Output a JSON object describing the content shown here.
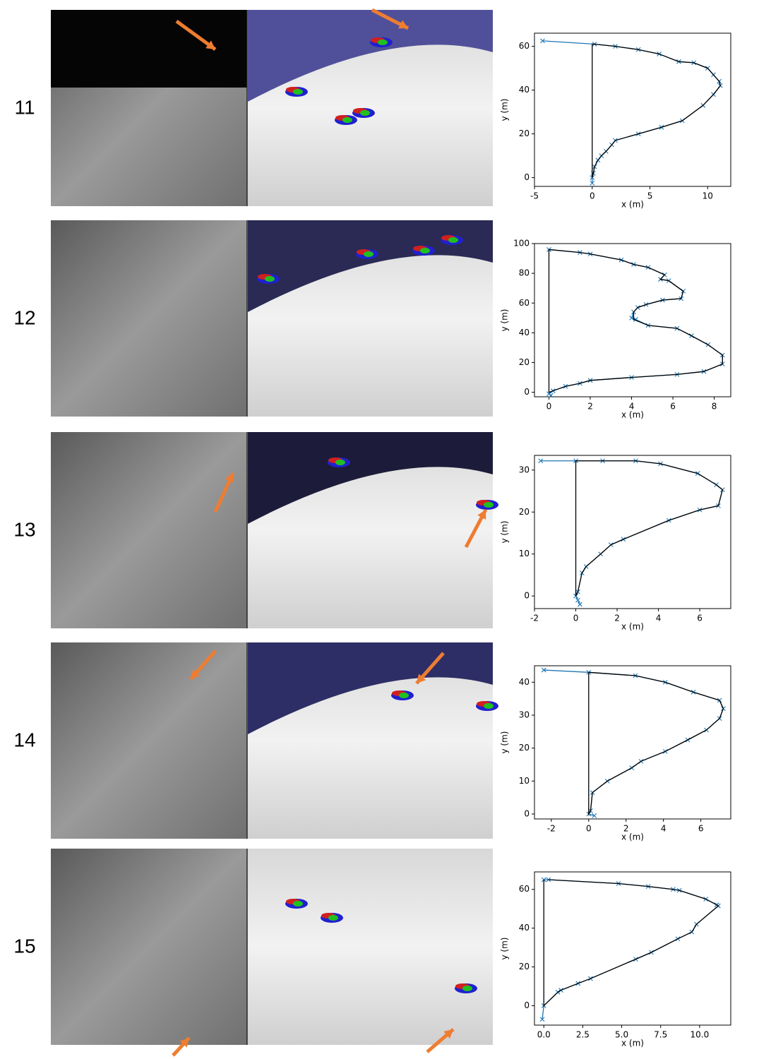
{
  "row_labels": [
    "11",
    "12",
    "13",
    "14",
    "15"
  ],
  "chart_data": [
    {
      "type": "line",
      "x_label": "x (m)",
      "y_label": "y (m)",
      "xlim": [
        -5,
        12
      ],
      "xticks": [
        -5,
        0,
        5,
        10
      ],
      "ylim": [
        -4,
        66
      ],
      "yticks": [
        0,
        20,
        40,
        60
      ],
      "series": [
        {
          "color": "#1f77b4",
          "marker": "x",
          "x": [
            -4.3,
            0.2,
            2,
            4,
            5.8,
            7.5,
            8.8,
            10,
            10.5,
            11,
            11.1,
            10.5,
            9.6,
            7.8,
            6,
            4,
            2,
            1.7,
            1.2,
            0.8,
            0.5,
            0.2,
            0.1,
            0,
            0
          ],
          "values": [
            62.5,
            61,
            60,
            58.5,
            56.5,
            53,
            52.5,
            50,
            47,
            44,
            42,
            38,
            33,
            26,
            23,
            20,
            17,
            15,
            12,
            10,
            8,
            5,
            2,
            0,
            -2.5
          ]
        },
        {
          "color": "#000000",
          "x": [
            0,
            0.2,
            2,
            4,
            5.8,
            7.5,
            8.8,
            10,
            10.5,
            11,
            11.1,
            10.5,
            9.6,
            7.8,
            6,
            4,
            2,
            1.7,
            1.2,
            0.8,
            0.5,
            0.2,
            0.1,
            0,
            0
          ],
          "values": [
            61,
            61,
            60,
            58.5,
            56.5,
            53,
            52.5,
            50,
            47,
            44,
            42,
            38,
            33,
            26,
            23,
            20,
            17,
            15,
            12,
            10,
            8,
            5,
            2,
            0,
            61
          ]
        }
      ]
    },
    {
      "type": "line",
      "x_label": "x (m)",
      "y_label": "y (m)",
      "xlim": [
        -0.7,
        8.8
      ],
      "xticks": [
        0,
        2,
        4,
        6,
        8
      ],
      "ylim": [
        -3,
        100
      ],
      "yticks": [
        0,
        20,
        40,
        60,
        80,
        100
      ],
      "series": [
        {
          "color": "#1f77b4",
          "marker": "x",
          "x": [
            0,
            1.5,
            2,
            3.5,
            4.1,
            4.8,
            5.6,
            5.4,
            5.8,
            6.5,
            6.4,
            5.5,
            4.7,
            4.3,
            4.1,
            4.0,
            4.2,
            4.8,
            6.2,
            6.9,
            7.7,
            8.4,
            8.4,
            7.5,
            6.2,
            4,
            2,
            1.5,
            0.8,
            0.2,
            0,
            0.1
          ],
          "values": [
            96,
            94,
            93,
            89,
            86,
            84,
            79,
            76,
            75,
            68,
            63,
            62,
            59,
            57,
            54,
            50,
            49,
            45,
            43,
            38,
            32,
            25,
            19,
            14,
            12,
            10,
            8,
            6,
            4,
            1,
            -1,
            -2
          ]
        },
        {
          "color": "#000000",
          "x": [
            0,
            1.5,
            2,
            3.5,
            4.1,
            4.8,
            5.6,
            5.4,
            5.8,
            6.5,
            6.4,
            5.5,
            4.7,
            4.3,
            4.1,
            4.1,
            4.8,
            6.2,
            6.9,
            7.7,
            8.4,
            8.4,
            7.5,
            6.2,
            4,
            2,
            1.5,
            0.8,
            0.2,
            0,
            0
          ],
          "values": [
            96,
            94,
            93,
            89,
            86,
            84,
            79,
            76,
            75,
            68,
            63,
            62,
            59,
            57,
            54,
            49,
            45,
            43,
            38,
            32,
            25,
            19,
            14,
            12,
            10,
            8,
            6,
            4,
            1,
            0,
            96
          ]
        }
      ]
    },
    {
      "type": "line",
      "x_label": "x (m)",
      "y_label": "y (m)",
      "xlim": [
        -2,
        7.5
      ],
      "xticks": [
        -2,
        0,
        2,
        4,
        6
      ],
      "ylim": [
        -3,
        33.5
      ],
      "yticks": [
        0,
        10,
        20,
        30
      ],
      "series": [
        {
          "color": "#1f77b4",
          "marker": "x",
          "x": [
            -1.7,
            0,
            1.3,
            2.9,
            4.1,
            5.9,
            6.8,
            7.1,
            6.9,
            6.0,
            4.5,
            2.3,
            1.7,
            1.2,
            0.5,
            0.3,
            0.1,
            0,
            0.1,
            0.2
          ],
          "values": [
            32.2,
            32.2,
            32.2,
            32.2,
            31.5,
            29.2,
            26.5,
            25.3,
            21.5,
            20.5,
            18,
            13.5,
            12.2,
            10,
            7,
            5.5,
            1,
            0,
            -1,
            -2
          ]
        },
        {
          "color": "#000000",
          "x": [
            0,
            1.3,
            2.9,
            4.1,
            5.9,
            6.8,
            7.1,
            6.9,
            6.0,
            4.5,
            2.3,
            1.7,
            1.2,
            0.5,
            0.3,
            0.1,
            0,
            0
          ],
          "values": [
            32.2,
            32.2,
            32.2,
            31.5,
            29.2,
            26.5,
            25.3,
            21.5,
            20.5,
            18,
            13.5,
            12.2,
            10,
            7,
            5.5,
            1,
            0,
            32.2
          ]
        }
      ]
    },
    {
      "type": "line",
      "x_label": "x (m)",
      "y_label": "y (m)",
      "xlim": [
        -2.9,
        7.6
      ],
      "xticks": [
        -2,
        0,
        2,
        4,
        6
      ],
      "ylim": [
        -1.5,
        45
      ],
      "yticks": [
        0,
        10,
        20,
        30,
        40
      ],
      "series": [
        {
          "color": "#1f77b4",
          "marker": "x",
          "x": [
            -2.4,
            0,
            2.5,
            4.1,
            5.6,
            7,
            7.2,
            7,
            6.3,
            5.3,
            4.1,
            2.8,
            2.3,
            1,
            0.2,
            0.1,
            0,
            0.3
          ],
          "values": [
            43.7,
            43,
            42,
            40,
            37,
            34.5,
            32,
            29,
            25.5,
            22.5,
            19,
            16,
            14,
            10,
            6.5,
            1,
            0,
            -0.5
          ]
        },
        {
          "color": "#000000",
          "x": [
            0,
            2.5,
            4.1,
            5.6,
            7,
            7.2,
            7,
            6.3,
            5.3,
            4.1,
            2.8,
            2.3,
            1,
            0.2,
            0.1,
            0,
            0
          ],
          "values": [
            43,
            42,
            40,
            37,
            34.5,
            32,
            29,
            25.5,
            22.5,
            19,
            16,
            14,
            10,
            6.5,
            1,
            0,
            43
          ]
        }
      ]
    },
    {
      "type": "line",
      "x_label": "x (m)",
      "y_label": "y (m)",
      "xlim": [
        -0.6,
        12
      ],
      "xticks": [
        {
          "value": 0,
          "label": "0.0"
        },
        {
          "value": 2.5,
          "label": "2.5"
        },
        {
          "value": 5,
          "label": "5.0"
        },
        {
          "value": 7.5,
          "label": "7.5"
        },
        {
          "value": 10,
          "label": "10.0"
        }
      ],
      "ylim": [
        -10,
        69
      ],
      "yticks": [
        0,
        20,
        40,
        60
      ],
      "series": [
        {
          "color": "#1f77b4",
          "marker": "x",
          "x": [
            0,
            0.3,
            4.8,
            6.7,
            8.3,
            8.7,
            10.4,
            11.1,
            11.2,
            9.8,
            9.5,
            8.6,
            6.9,
            5.9,
            3.0,
            2.2,
            1.1,
            0.9,
            0,
            -0.1
          ],
          "values": [
            65,
            65,
            63,
            61.5,
            60,
            59.5,
            55,
            52,
            51.5,
            42,
            38,
            34.5,
            27.5,
            24,
            14,
            11.5,
            8,
            7,
            0,
            -7
          ]
        },
        {
          "color": "#000000",
          "x": [
            0.3,
            4.8,
            6.7,
            8.3,
            8.7,
            10.4,
            11.1,
            11.2,
            9.8,
            9.5,
            8.6,
            6.9,
            5.9,
            3.0,
            2.2,
            1.1,
            0.9,
            0,
            0
          ],
          "values": [
            65,
            63,
            61.5,
            60,
            59.5,
            55,
            52,
            51.5,
            42,
            38,
            34.5,
            27.5,
            24,
            14,
            11.5,
            8,
            7,
            0,
            65
          ]
        }
      ]
    }
  ]
}
